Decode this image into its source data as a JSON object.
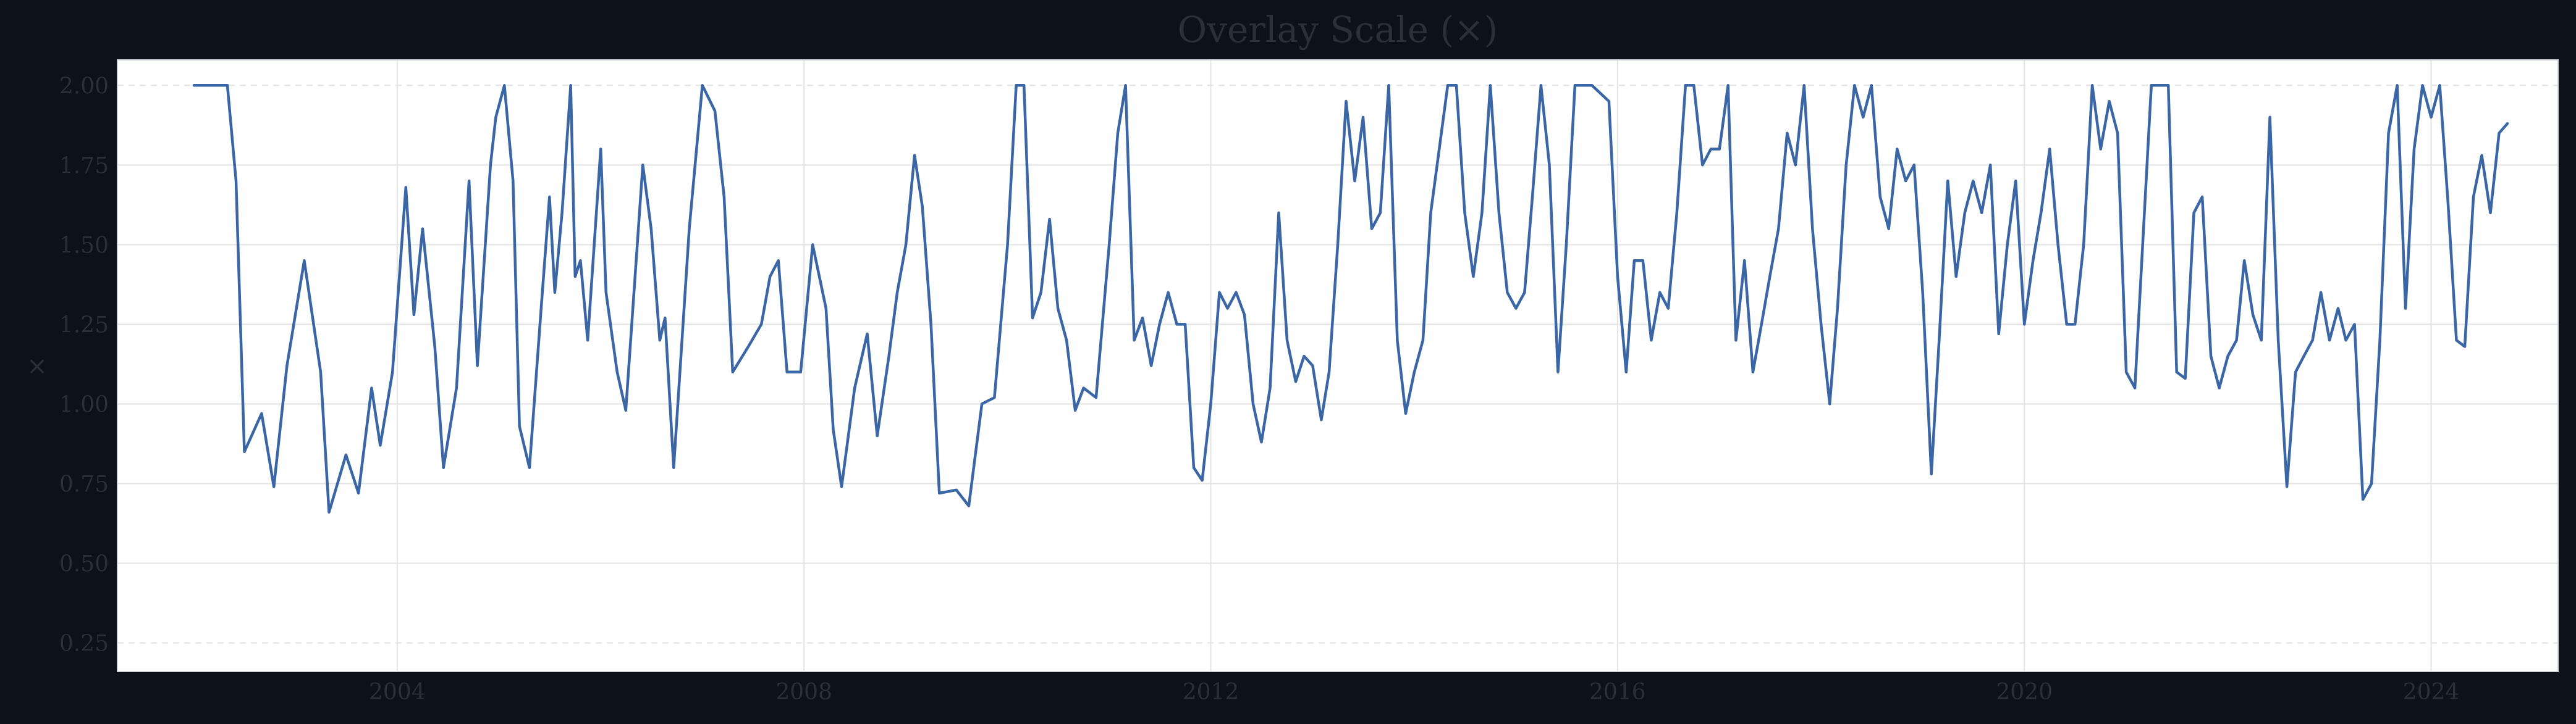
{
  "colors": {
    "page_background": "#0d1119",
    "plot_background": "#ffffff",
    "line": "#3a66a6",
    "grid": "#e3e3e3",
    "text": "#2b2f37",
    "axis_frame": "#cfd3d8"
  },
  "chart_data": {
    "type": "line",
    "title": "Overlay Scale (×)",
    "xlabel": "",
    "ylabel": "×",
    "grid": true,
    "legend": "none",
    "xlim": [
      "2001-04-01",
      "2025-04-01"
    ],
    "ylim": [
      0.16,
      2.08
    ],
    "x_ticks": [
      "2004",
      "2008",
      "2012",
      "2016",
      "2020",
      "2024"
    ],
    "y_ticks": [
      "0.25",
      "0.50",
      "0.75",
      "1.00",
      "1.25",
      "1.50",
      "1.75",
      "2.00"
    ],
    "series": [
      {
        "values": [
          [
            "2002-01-01",
            2.0
          ],
          [
            "2002-05-01",
            2.0
          ],
          [
            "2002-06-01",
            1.7
          ],
          [
            "2002-07-01",
            0.85
          ],
          [
            "2002-09-01",
            0.97
          ],
          [
            "2002-10-15",
            0.74
          ],
          [
            "2002-12-01",
            1.12
          ],
          [
            "2003-02-01",
            1.45
          ],
          [
            "2003-04-01",
            1.1
          ],
          [
            "2003-05-01",
            0.66
          ],
          [
            "2003-07-01",
            0.84
          ],
          [
            "2003-08-15",
            0.72
          ],
          [
            "2003-10-01",
            1.05
          ],
          [
            "2003-11-01",
            0.87
          ],
          [
            "2003-12-15",
            1.1
          ],
          [
            "2004-02-01",
            1.68
          ],
          [
            "2004-03-01",
            1.28
          ],
          [
            "2004-04-01",
            1.55
          ],
          [
            "2004-05-15",
            1.18
          ],
          [
            "2004-06-15",
            0.8
          ],
          [
            "2004-08-01",
            1.05
          ],
          [
            "2004-09-15",
            1.7
          ],
          [
            "2004-10-15",
            1.12
          ],
          [
            "2004-12-01",
            1.75
          ],
          [
            "2004-12-20",
            1.9
          ],
          [
            "2005-01-20",
            2.0
          ],
          [
            "2005-02-20",
            1.7
          ],
          [
            "2005-03-15",
            0.93
          ],
          [
            "2005-04-20",
            0.8
          ],
          [
            "2005-06-01",
            1.3
          ],
          [
            "2005-07-01",
            1.65
          ],
          [
            "2005-07-20",
            1.35
          ],
          [
            "2005-08-15",
            1.6
          ],
          [
            "2005-09-15",
            2.0
          ],
          [
            "2005-10-01",
            1.4
          ],
          [
            "2005-10-20",
            1.45
          ],
          [
            "2005-11-15",
            1.2
          ],
          [
            "2006-01-01",
            1.8
          ],
          [
            "2006-01-20",
            1.35
          ],
          [
            "2006-03-01",
            1.1
          ],
          [
            "2006-04-01",
            0.98
          ],
          [
            "2006-06-01",
            1.75
          ],
          [
            "2006-07-01",
            1.55
          ],
          [
            "2006-08-01",
            1.2
          ],
          [
            "2006-08-20",
            1.27
          ],
          [
            "2006-09-20",
            0.8
          ],
          [
            "2006-11-15",
            1.55
          ],
          [
            "2007-01-01",
            2.0
          ],
          [
            "2007-02-15",
            1.92
          ],
          [
            "2007-03-20",
            1.65
          ],
          [
            "2007-04-20",
            1.1
          ],
          [
            "2007-06-15",
            1.18
          ],
          [
            "2007-08-01",
            1.25
          ],
          [
            "2007-09-01",
            1.4
          ],
          [
            "2007-10-01",
            1.45
          ],
          [
            "2007-11-01",
            1.1
          ],
          [
            "2007-12-20",
            1.1
          ],
          [
            "2008-02-01",
            1.5
          ],
          [
            "2008-03-20",
            1.3
          ],
          [
            "2008-04-15",
            0.92
          ],
          [
            "2008-05-15",
            0.74
          ],
          [
            "2008-07-01",
            1.05
          ],
          [
            "2008-08-15",
            1.22
          ],
          [
            "2008-09-20",
            0.9
          ],
          [
            "2008-11-01",
            1.15
          ],
          [
            "2008-12-01",
            1.35
          ],
          [
            "2009-01-01",
            1.5
          ],
          [
            "2009-02-01",
            1.78
          ],
          [
            "2009-03-01",
            1.62
          ],
          [
            "2009-04-01",
            1.25
          ],
          [
            "2009-05-01",
            0.72
          ],
          [
            "2009-07-01",
            0.73
          ],
          [
            "2009-08-15",
            0.68
          ],
          [
            "2009-10-01",
            1.0
          ],
          [
            "2009-11-15",
            1.02
          ],
          [
            "2010-01-01",
            1.5
          ],
          [
            "2010-02-01",
            2.0
          ],
          [
            "2010-03-01",
            2.0
          ],
          [
            "2010-04-01",
            1.27
          ],
          [
            "2010-05-01",
            1.35
          ],
          [
            "2010-06-01",
            1.58
          ],
          [
            "2010-07-01",
            1.3
          ],
          [
            "2010-08-01",
            1.2
          ],
          [
            "2010-09-01",
            0.98
          ],
          [
            "2010-10-01",
            1.05
          ],
          [
            "2010-11-15",
            1.02
          ],
          [
            "2011-01-01",
            1.5
          ],
          [
            "2011-02-01",
            1.85
          ],
          [
            "2011-03-01",
            2.0
          ],
          [
            "2011-04-01",
            1.2
          ],
          [
            "2011-05-01",
            1.27
          ],
          [
            "2011-06-01",
            1.12
          ],
          [
            "2011-07-01",
            1.25
          ],
          [
            "2011-08-01",
            1.35
          ],
          [
            "2011-09-01",
            1.25
          ],
          [
            "2011-10-01",
            1.25
          ],
          [
            "2011-11-01",
            0.8
          ],
          [
            "2011-12-01",
            0.76
          ],
          [
            "2012-01-01",
            1.0
          ],
          [
            "2012-02-01",
            1.35
          ],
          [
            "2012-03-01",
            1.3
          ],
          [
            "2012-04-01",
            1.35
          ],
          [
            "2012-05-01",
            1.28
          ],
          [
            "2012-06-01",
            1.0
          ],
          [
            "2012-07-01",
            0.88
          ],
          [
            "2012-08-01",
            1.05
          ],
          [
            "2012-09-01",
            1.6
          ],
          [
            "2012-10-01",
            1.2
          ],
          [
            "2012-11-01",
            1.07
          ],
          [
            "2012-12-01",
            1.15
          ],
          [
            "2013-01-01",
            1.12
          ],
          [
            "2013-02-01",
            0.95
          ],
          [
            "2013-03-01",
            1.1
          ],
          [
            "2013-04-01",
            1.5
          ],
          [
            "2013-05-01",
            1.95
          ],
          [
            "2013-06-01",
            1.7
          ],
          [
            "2013-07-01",
            1.9
          ],
          [
            "2013-08-01",
            1.55
          ],
          [
            "2013-09-01",
            1.6
          ],
          [
            "2013-10-01",
            2.0
          ],
          [
            "2013-11-01",
            1.2
          ],
          [
            "2013-12-01",
            0.97
          ],
          [
            "2014-01-01",
            1.1
          ],
          [
            "2014-02-01",
            1.2
          ],
          [
            "2014-03-01",
            1.6
          ],
          [
            "2014-05-01",
            2.0
          ],
          [
            "2014-06-01",
            2.0
          ],
          [
            "2014-07-01",
            1.6
          ],
          [
            "2014-08-01",
            1.4
          ],
          [
            "2014-09-01",
            1.6
          ],
          [
            "2014-10-01",
            2.0
          ],
          [
            "2014-11-01",
            1.6
          ],
          [
            "2014-12-01",
            1.35
          ],
          [
            "2015-01-01",
            1.3
          ],
          [
            "2015-02-01",
            1.35
          ],
          [
            "2015-03-01",
            1.65
          ],
          [
            "2015-04-01",
            2.0
          ],
          [
            "2015-05-01",
            1.75
          ],
          [
            "2015-06-01",
            1.1
          ],
          [
            "2015-07-01",
            1.5
          ],
          [
            "2015-08-01",
            2.0
          ],
          [
            "2015-10-01",
            2.0
          ],
          [
            "2015-12-01",
            1.95
          ],
          [
            "2016-01-01",
            1.4
          ],
          [
            "2016-02-01",
            1.1
          ],
          [
            "2016-03-01",
            1.45
          ],
          [
            "2016-04-01",
            1.45
          ],
          [
            "2016-05-01",
            1.2
          ],
          [
            "2016-06-01",
            1.35
          ],
          [
            "2016-07-01",
            1.3
          ],
          [
            "2016-08-01",
            1.6
          ],
          [
            "2016-09-01",
            2.0
          ],
          [
            "2016-10-01",
            2.0
          ],
          [
            "2016-11-01",
            1.75
          ],
          [
            "2016-12-01",
            1.8
          ],
          [
            "2017-01-01",
            1.8
          ],
          [
            "2017-02-01",
            2.0
          ],
          [
            "2017-03-01",
            1.2
          ],
          [
            "2017-04-01",
            1.45
          ],
          [
            "2017-05-01",
            1.1
          ],
          [
            "2017-06-01",
            1.25
          ],
          [
            "2017-07-01",
            1.4
          ],
          [
            "2017-08-01",
            1.55
          ],
          [
            "2017-09-01",
            1.85
          ],
          [
            "2017-10-01",
            1.75
          ],
          [
            "2017-11-01",
            2.0
          ],
          [
            "2017-12-01",
            1.55
          ],
          [
            "2018-01-01",
            1.25
          ],
          [
            "2018-02-01",
            1.0
          ],
          [
            "2018-03-01",
            1.3
          ],
          [
            "2018-04-01",
            1.75
          ],
          [
            "2018-05-01",
            2.0
          ],
          [
            "2018-06-01",
            1.9
          ],
          [
            "2018-07-01",
            2.0
          ],
          [
            "2018-08-01",
            1.65
          ],
          [
            "2018-09-01",
            1.55
          ],
          [
            "2018-10-01",
            1.8
          ],
          [
            "2018-11-01",
            1.7
          ],
          [
            "2018-12-01",
            1.75
          ],
          [
            "2019-01-01",
            1.35
          ],
          [
            "2019-02-01",
            0.78
          ],
          [
            "2019-03-01",
            1.2
          ],
          [
            "2019-04-01",
            1.7
          ],
          [
            "2019-05-01",
            1.4
          ],
          [
            "2019-06-01",
            1.6
          ],
          [
            "2019-07-01",
            1.7
          ],
          [
            "2019-08-01",
            1.6
          ],
          [
            "2019-09-01",
            1.75
          ],
          [
            "2019-10-01",
            1.22
          ],
          [
            "2019-11-01",
            1.5
          ],
          [
            "2019-12-01",
            1.7
          ],
          [
            "2020-01-01",
            1.25
          ],
          [
            "2020-02-01",
            1.45
          ],
          [
            "2020-03-01",
            1.6
          ],
          [
            "2020-04-01",
            1.8
          ],
          [
            "2020-05-01",
            1.5
          ],
          [
            "2020-06-01",
            1.25
          ],
          [
            "2020-07-01",
            1.25
          ],
          [
            "2020-08-01",
            1.5
          ],
          [
            "2020-09-01",
            2.0
          ],
          [
            "2020-10-01",
            1.8
          ],
          [
            "2020-11-01",
            1.95
          ],
          [
            "2020-12-01",
            1.85
          ],
          [
            "2021-01-01",
            1.1
          ],
          [
            "2021-02-01",
            1.05
          ],
          [
            "2021-03-01",
            1.5
          ],
          [
            "2021-04-01",
            2.0
          ],
          [
            "2021-05-01",
            2.0
          ],
          [
            "2021-06-01",
            2.0
          ],
          [
            "2021-07-01",
            1.1
          ],
          [
            "2021-08-01",
            1.08
          ],
          [
            "2021-09-01",
            1.6
          ],
          [
            "2021-10-01",
            1.65
          ],
          [
            "2021-11-01",
            1.15
          ],
          [
            "2021-12-01",
            1.05
          ],
          [
            "2022-01-01",
            1.15
          ],
          [
            "2022-02-01",
            1.2
          ],
          [
            "2022-03-01",
            1.45
          ],
          [
            "2022-04-01",
            1.28
          ],
          [
            "2022-05-01",
            1.2
          ],
          [
            "2022-06-01",
            1.9
          ],
          [
            "2022-07-01",
            1.2
          ],
          [
            "2022-08-01",
            0.74
          ],
          [
            "2022-09-01",
            1.1
          ],
          [
            "2022-10-01",
            1.15
          ],
          [
            "2022-11-01",
            1.2
          ],
          [
            "2022-12-01",
            1.35
          ],
          [
            "2023-01-01",
            1.2
          ],
          [
            "2023-02-01",
            1.3
          ],
          [
            "2023-03-01",
            1.2
          ],
          [
            "2023-04-01",
            1.25
          ],
          [
            "2023-05-01",
            0.7
          ],
          [
            "2023-06-01",
            0.75
          ],
          [
            "2023-07-01",
            1.2
          ],
          [
            "2023-08-01",
            1.85
          ],
          [
            "2023-09-01",
            2.0
          ],
          [
            "2023-10-01",
            1.3
          ],
          [
            "2023-11-01",
            1.8
          ],
          [
            "2023-12-01",
            2.0
          ],
          [
            "2024-01-01",
            1.9
          ],
          [
            "2024-02-01",
            2.0
          ],
          [
            "2024-03-01",
            1.64
          ],
          [
            "2024-04-01",
            1.2
          ],
          [
            "2024-05-01",
            1.18
          ],
          [
            "2024-06-01",
            1.65
          ],
          [
            "2024-07-01",
            1.78
          ],
          [
            "2024-08-01",
            1.6
          ],
          [
            "2024-09-01",
            1.85
          ],
          [
            "2024-10-01",
            1.88
          ]
        ]
      }
    ]
  }
}
